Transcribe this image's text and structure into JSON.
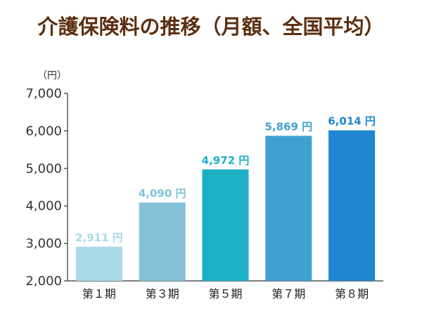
{
  "chart_data": {
    "type": "bar",
    "title": "介護保険料の推移（月額、全国平均）",
    "ylabel": "（円）",
    "xlabel": "",
    "ylim": [
      2000,
      7000
    ],
    "yticks": [
      2000,
      3000,
      4000,
      5000,
      6000,
      7000
    ],
    "ytick_labels": [
      "2,000",
      "3,000",
      "4,000",
      "5,000",
      "6,000",
      "7,000"
    ],
    "categories": [
      "第１期",
      "第３期",
      "第５期",
      "第７期",
      "第８期"
    ],
    "values": [
      2911,
      4090,
      4972,
      5869,
      6014
    ],
    "data_labels": [
      "2,911 円",
      "4,090 円",
      "4,972 円",
      "5,869 円",
      "6,014 円"
    ],
    "bar_colors": [
      "#a9d8e6",
      "#84c1d8",
      "#1cb0c4",
      "#3fa0d2",
      "#1f86d0"
    ],
    "label_colors": [
      "#a9d8e6",
      "#84c1d8",
      "#1cb0c4",
      "#3fa0d2",
      "#1f86d0"
    ],
    "grid": false,
    "legend": "none"
  }
}
